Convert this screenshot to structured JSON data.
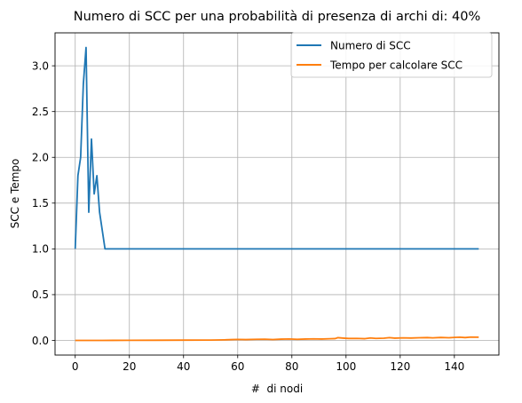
{
  "chart_data": {
    "type": "line",
    "title": "Numero di SCC per una probabilità di presenza di archi di: 40%",
    "xlabel": "#  di nodi",
    "ylabel": "SCC e Tempo",
    "xlim": [
      -7.45,
      156.45
    ],
    "ylim": [
      -0.16,
      3.36
    ],
    "xticks": [
      0,
      20,
      40,
      60,
      80,
      100,
      120,
      140
    ],
    "yticks": [
      0.0,
      0.5,
      1.0,
      1.5,
      2.0,
      2.5,
      3.0
    ],
    "xtick_labels": [
      "0",
      "20",
      "40",
      "60",
      "80",
      "100",
      "120",
      "140"
    ],
    "ytick_labels": [
      "0.0",
      "0.5",
      "1.0",
      "1.5",
      "2.0",
      "2.5",
      "3.0"
    ],
    "grid": true,
    "legend_position": "top-right",
    "series": [
      {
        "name": "Numero di SCC",
        "color": "#1f77b4",
        "points": [
          [
            0,
            1.0
          ],
          [
            1,
            1.8
          ],
          [
            2,
            2.0
          ],
          [
            3,
            2.8
          ],
          [
            4,
            3.2
          ],
          [
            5,
            1.4
          ],
          [
            6,
            2.2
          ],
          [
            7,
            1.6
          ],
          [
            8,
            1.8
          ],
          [
            9,
            1.4
          ],
          [
            10,
            1.2
          ],
          [
            11,
            1.0
          ],
          [
            149,
            1.0
          ]
        ]
      },
      {
        "name": "Tempo per calcolare SCC",
        "color": "#ff7f0e",
        "points": [
          [
            0,
            0.0
          ],
          [
            10,
            0.0
          ],
          [
            20,
            0.001
          ],
          [
            30,
            0.002
          ],
          [
            40,
            0.003
          ],
          [
            50,
            0.004
          ],
          [
            55,
            0.006
          ],
          [
            58,
            0.009
          ],
          [
            60,
            0.011
          ],
          [
            63,
            0.009
          ],
          [
            67,
            0.012
          ],
          [
            70,
            0.013
          ],
          [
            73,
            0.01
          ],
          [
            76,
            0.014
          ],
          [
            79,
            0.016
          ],
          [
            82,
            0.012
          ],
          [
            85,
            0.015
          ],
          [
            88,
            0.017
          ],
          [
            91,
            0.015
          ],
          [
            94,
            0.018
          ],
          [
            96,
            0.02
          ],
          [
            97,
            0.03
          ],
          [
            99,
            0.025
          ],
          [
            101,
            0.021
          ],
          [
            104,
            0.022
          ],
          [
            107,
            0.019
          ],
          [
            109,
            0.027
          ],
          [
            111,
            0.022
          ],
          [
            114,
            0.024
          ],
          [
            116,
            0.03
          ],
          [
            118,
            0.025
          ],
          [
            121,
            0.028
          ],
          [
            124,
            0.026
          ],
          [
            127,
            0.029
          ],
          [
            130,
            0.031
          ],
          [
            132,
            0.028
          ],
          [
            135,
            0.032
          ],
          [
            138,
            0.029
          ],
          [
            140,
            0.033
          ],
          [
            142,
            0.035
          ],
          [
            144,
            0.031
          ],
          [
            146,
            0.036
          ],
          [
            149,
            0.035
          ]
        ]
      }
    ]
  }
}
